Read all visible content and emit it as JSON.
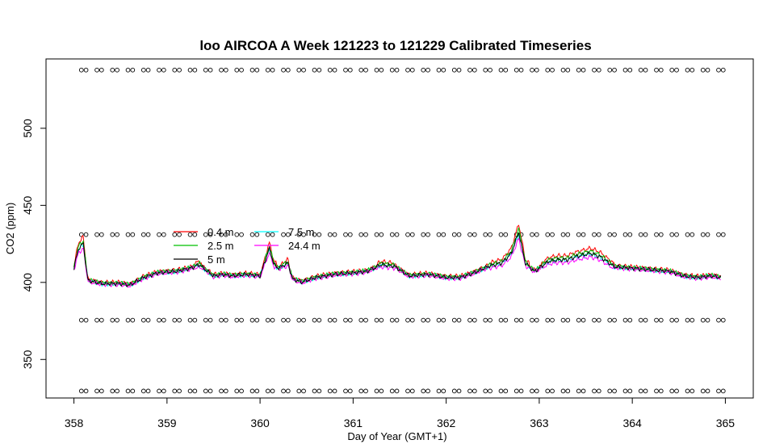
{
  "chart_data": {
    "type": "line",
    "title": "loo AIRCOA A  Week 121223 to 121229  Calibrated Timeseries",
    "xlabel": "Day of Year (GMT+1)",
    "ylabel": "CO2 (ppm)",
    "xlim": [
      357.7,
      365.3
    ],
    "ylim": [
      325,
      545
    ],
    "x_ticks": [
      358,
      359,
      360,
      361,
      362,
      363,
      364,
      365
    ],
    "y_ticks": [
      350,
      400,
      450,
      500
    ],
    "grid": false,
    "legend_position": "center-left",
    "calibration_points": {
      "marker": "open-circle",
      "levels": [
        537.8,
        431.0,
        375.5,
        329.5
      ],
      "x_start": 358.08,
      "x_end": 364.98,
      "spacing": 0.167,
      "pair_gap": 0.05
    },
    "series": [
      {
        "name": "0.4 m",
        "color": "#ff0000",
        "offset": 3.0,
        "spike_gain": 1.9,
        "x": [
          358.0,
          358.05,
          358.1,
          358.15,
          358.3,
          358.5,
          358.6,
          358.75,
          358.9,
          359.1,
          359.25,
          359.35,
          359.5,
          359.6,
          359.7,
          359.85,
          360.0,
          360.1,
          360.15,
          360.2,
          360.3,
          360.35,
          360.45,
          360.6,
          360.8,
          361.0,
          361.15,
          361.3,
          361.45,
          361.6,
          361.8,
          362.0,
          362.15,
          362.3,
          362.45,
          362.6,
          362.7,
          362.78,
          362.85,
          362.95,
          363.1,
          363.2,
          363.3,
          363.4,
          363.55,
          363.65,
          363.8,
          364.0,
          364.2,
          364.4,
          364.55,
          364.7,
          364.85,
          364.95
        ],
        "y": [
          409,
          421,
          424,
          401,
          399,
          399,
          398,
          403,
          406,
          407,
          409,
          411,
          404,
          405,
          404,
          405,
          404,
          421,
          411,
          409,
          412,
          402,
          400,
          403,
          405,
          406,
          407,
          411,
          410,
          404,
          405,
          403,
          403,
          406,
          410,
          412,
          418,
          431,
          412,
          407,
          413,
          414,
          414,
          416,
          418,
          416,
          410,
          409,
          408,
          407,
          404,
          403,
          404,
          403
        ]
      },
      {
        "name": "7.5 m",
        "color": "#00ffff",
        "offset": 0.2,
        "spike_gain": 1.1,
        "x": [
          358.0,
          358.05,
          358.1,
          358.15,
          358.3,
          358.5,
          358.6,
          358.75,
          358.9,
          359.1,
          359.25,
          359.35,
          359.5,
          359.6,
          359.7,
          359.85,
          360.0,
          360.1,
          360.15,
          360.2,
          360.3,
          360.35,
          360.45,
          360.6,
          360.8,
          361.0,
          361.15,
          361.3,
          361.45,
          361.6,
          361.8,
          362.0,
          362.15,
          362.3,
          362.45,
          362.6,
          362.7,
          362.78,
          362.85,
          362.95,
          363.1,
          363.2,
          363.3,
          363.4,
          363.55,
          363.65,
          363.8,
          364.0,
          364.2,
          364.4,
          364.55,
          364.7,
          364.85,
          364.95
        ],
        "y": [
          409,
          421,
          424,
          401,
          399,
          399,
          398,
          403,
          406,
          407,
          409,
          411,
          404,
          405,
          404,
          405,
          404,
          421,
          411,
          409,
          412,
          402,
          400,
          403,
          405,
          406,
          407,
          411,
          410,
          404,
          405,
          403,
          403,
          406,
          410,
          412,
          418,
          431,
          412,
          407,
          413,
          414,
          414,
          416,
          418,
          416,
          410,
          409,
          408,
          407,
          404,
          403,
          404,
          403
        ]
      },
      {
        "name": "2.5 m",
        "color": "#00c000",
        "offset": 1.6,
        "spike_gain": 1.5,
        "x": [
          358.0,
          358.05,
          358.1,
          358.15,
          358.3,
          358.5,
          358.6,
          358.75,
          358.9,
          359.1,
          359.25,
          359.35,
          359.5,
          359.6,
          359.7,
          359.85,
          360.0,
          360.1,
          360.15,
          360.2,
          360.3,
          360.35,
          360.45,
          360.6,
          360.8,
          361.0,
          361.15,
          361.3,
          361.45,
          361.6,
          361.8,
          362.0,
          362.15,
          362.3,
          362.45,
          362.6,
          362.7,
          362.78,
          362.85,
          362.95,
          363.1,
          363.2,
          363.3,
          363.4,
          363.55,
          363.65,
          363.8,
          364.0,
          364.2,
          364.4,
          364.55,
          364.7,
          364.85,
          364.95
        ],
        "y": [
          409,
          421,
          424,
          401,
          399,
          399,
          398,
          403,
          406,
          407,
          409,
          411,
          404,
          405,
          404,
          405,
          404,
          421,
          411,
          409,
          412,
          402,
          400,
          403,
          405,
          406,
          407,
          411,
          410,
          404,
          405,
          403,
          403,
          406,
          410,
          412,
          418,
          431,
          412,
          407,
          413,
          414,
          414,
          416,
          418,
          416,
          410,
          409,
          408,
          407,
          404,
          403,
          404,
          403
        ]
      },
      {
        "name": "24.4 m",
        "color": "#ff00ff",
        "offset": -1.2,
        "spike_gain": 0.7,
        "x": [
          358.0,
          358.05,
          358.1,
          358.15,
          358.3,
          358.5,
          358.6,
          358.75,
          358.9,
          359.1,
          359.25,
          359.35,
          359.5,
          359.6,
          359.7,
          359.85,
          360.0,
          360.1,
          360.15,
          360.2,
          360.3,
          360.35,
          360.45,
          360.6,
          360.8,
          361.0,
          361.15,
          361.3,
          361.45,
          361.6,
          361.8,
          362.0,
          362.15,
          362.3,
          362.45,
          362.6,
          362.7,
          362.78,
          362.85,
          362.95,
          363.1,
          363.2,
          363.3,
          363.4,
          363.55,
          363.65,
          363.8,
          364.0,
          364.2,
          364.4,
          364.55,
          364.7,
          364.85,
          364.95
        ],
        "y": [
          409,
          421,
          424,
          401,
          399,
          399,
          398,
          403,
          406,
          407,
          409,
          411,
          404,
          405,
          404,
          405,
          404,
          421,
          411,
          409,
          412,
          402,
          400,
          403,
          405,
          406,
          407,
          411,
          410,
          404,
          405,
          403,
          403,
          406,
          410,
          412,
          418,
          431,
          412,
          407,
          413,
          414,
          414,
          416,
          418,
          416,
          410,
          409,
          408,
          407,
          404,
          403,
          404,
          403
        ]
      },
      {
        "name": "5 m",
        "color": "#000000",
        "offset": 0.6,
        "spike_gain": 1.2,
        "x": [
          358.0,
          358.05,
          358.1,
          358.15,
          358.3,
          358.5,
          358.6,
          358.75,
          358.9,
          359.1,
          359.25,
          359.35,
          359.5,
          359.6,
          359.7,
          359.85,
          360.0,
          360.1,
          360.15,
          360.2,
          360.3,
          360.35,
          360.45,
          360.6,
          360.8,
          361.0,
          361.15,
          361.3,
          361.45,
          361.6,
          361.8,
          362.0,
          362.15,
          362.3,
          362.45,
          362.6,
          362.7,
          362.78,
          362.85,
          362.95,
          363.1,
          363.2,
          363.3,
          363.4,
          363.55,
          363.65,
          363.8,
          364.0,
          364.2,
          364.4,
          364.55,
          364.7,
          364.85,
          364.95
        ],
        "y": [
          409,
          421,
          424,
          401,
          399,
          399,
          398,
          403,
          406,
          407,
          409,
          411,
          404,
          405,
          404,
          405,
          404,
          421,
          411,
          409,
          412,
          402,
          400,
          403,
          405,
          406,
          407,
          411,
          410,
          404,
          405,
          403,
          403,
          406,
          410,
          412,
          418,
          431,
          412,
          407,
          413,
          414,
          414,
          416,
          418,
          416,
          410,
          409,
          408,
          407,
          404,
          403,
          404,
          403
        ]
      }
    ],
    "legend": [
      {
        "label": "0.4 m",
        "color": "#ff0000"
      },
      {
        "label": "2.5 m",
        "color": "#00c000"
      },
      {
        "label": "5 m",
        "color": "#000000"
      },
      {
        "label": "7.5 m",
        "color": "#00ffff"
      },
      {
        "label": "24.4 m",
        "color": "#ff00ff"
      }
    ]
  }
}
